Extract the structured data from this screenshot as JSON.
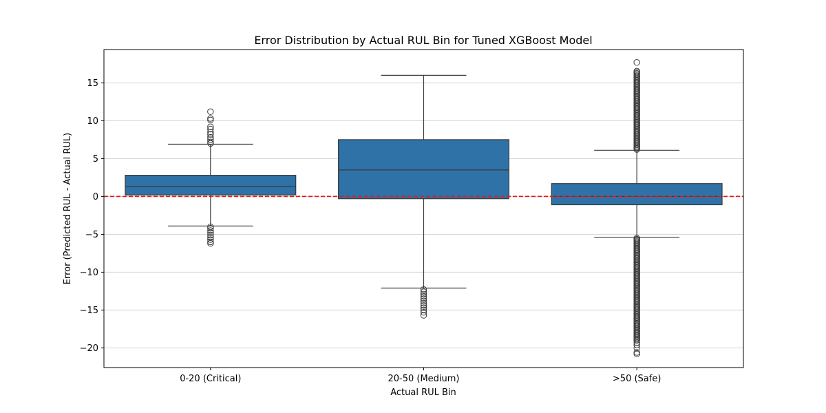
{
  "chart_data": {
    "type": "box",
    "title": "Error Distribution by Actual RUL Bin for Tuned XGBoost Model",
    "xlabel": "Actual RUL Bin",
    "ylabel": "Error (Predicted RUL - Actual RUL)",
    "ylim": [
      -22.6,
      19.4
    ],
    "yticks": [
      -20,
      -15,
      -10,
      -5,
      0,
      5,
      10,
      15
    ],
    "grid": "horizontal",
    "box_color": "#2e72a8",
    "line_color": "#3a3a3a",
    "reference_line": {
      "y": 0,
      "color": "#e31a1c",
      "style": "dashed"
    },
    "categories": [
      "0-20 (Critical)",
      "20-50 (Medium)",
      ">50 (Safe)"
    ],
    "boxes": [
      {
        "category": "0-20 (Critical)",
        "whisker_low": -3.9,
        "q1": 0.2,
        "median": 1.3,
        "q3": 2.8,
        "whisker_high": 6.9,
        "outliers": [
          7.0,
          7.2,
          7.5,
          7.8,
          8.2,
          8.5,
          8.9,
          9.2,
          10.1,
          10.3,
          11.2,
          -4.0,
          -4.2,
          -4.5,
          -4.8,
          -5.1,
          -5.4,
          -5.7,
          -6.0,
          -6.2
        ]
      },
      {
        "category": "20-50 (Medium)",
        "whisker_low": -12.1,
        "q1": -0.3,
        "median": 3.5,
        "q3": 7.5,
        "whisker_high": 16.0,
        "outliers": [
          -12.3,
          -12.6,
          -12.9,
          -13.2,
          -13.5,
          -13.8,
          -14.1,
          -14.4,
          -14.7,
          -15.0,
          -15.3,
          -15.7
        ]
      },
      {
        "category": ">50 (Safe)",
        "whisker_low": -5.4,
        "q1": -1.1,
        "median": 0.0,
        "q3": 1.7,
        "whisker_high": 6.1,
        "outlier_ranges": [
          [
            6.2,
            16.6
          ],
          [
            -19.0,
            -5.5
          ]
        ],
        "outliers": [
          17.7,
          -19.3,
          -19.6,
          -20.0,
          -20.6,
          -20.8
        ]
      }
    ]
  }
}
